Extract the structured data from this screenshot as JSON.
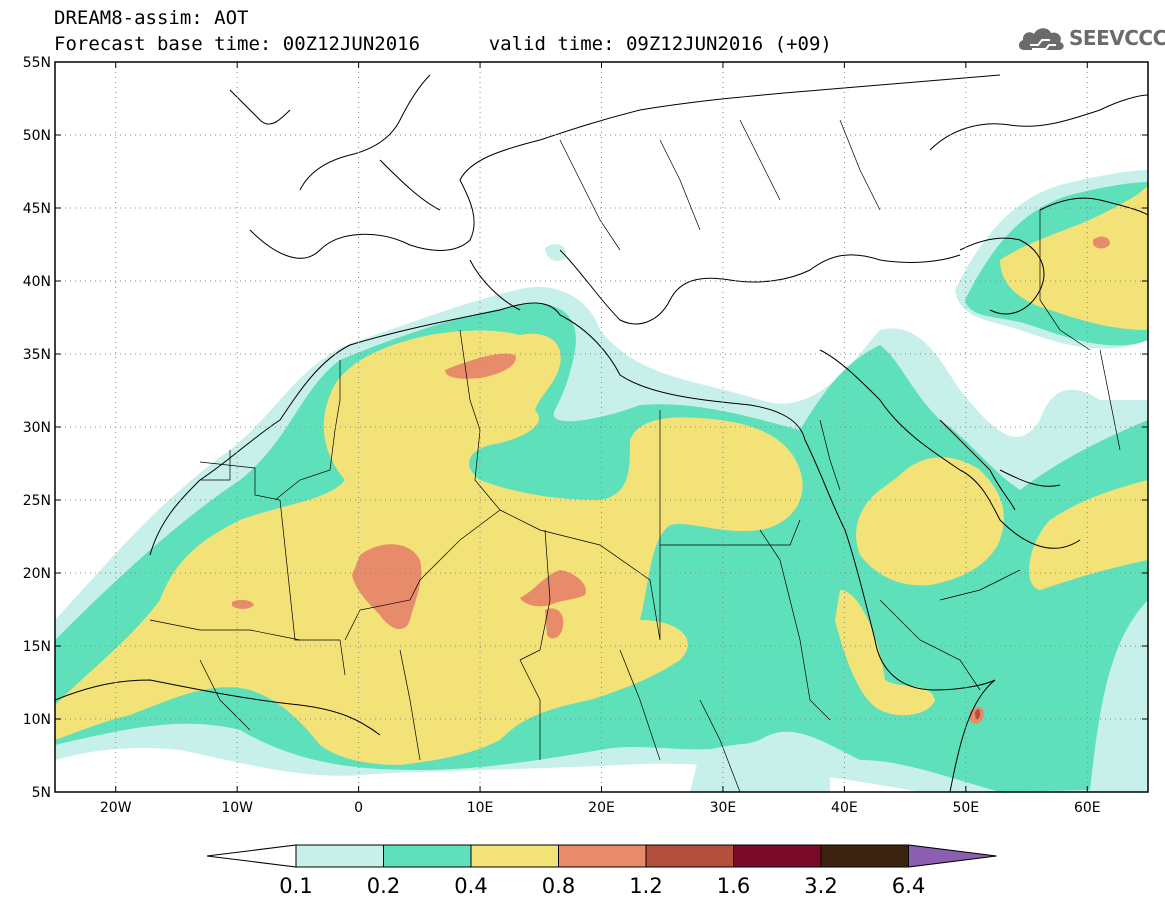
{
  "header": {
    "title": "DREAM8-assim: AOT",
    "base_time_label": "Forecast base time: 00Z12JUN2016",
    "valid_time_label": "valid time: 09Z12JUN2016 (+09)"
  },
  "logo": {
    "text": "SEEVCCC",
    "icon": "cloud-icon"
  },
  "map": {
    "lon_range": [
      -25,
      65
    ],
    "lat_range": [
      5,
      55
    ],
    "lat_ticks": [
      "5N",
      "10N",
      "15N",
      "20N",
      "25N",
      "30N",
      "35N",
      "40N",
      "45N",
      "50N",
      "55N"
    ],
    "lon_ticks": [
      "20W",
      "10W",
      "0",
      "10E",
      "20E",
      "30E",
      "40E",
      "50E",
      "60E"
    ],
    "grid": "dotted"
  },
  "legend": {
    "labels": [
      "0.1",
      "0.2",
      "0.4",
      "0.8",
      "1.2",
      "1.6",
      "3.2",
      "6.4"
    ],
    "colors": [
      "#c8f0ea",
      "#5ee0bb",
      "#f3e277",
      "#e88b6a",
      "#b2503d",
      "#7a0a2a",
      "#3a220f"
    ],
    "under_color": "#ffffff",
    "over_color": "#8a5fb0"
  }
}
